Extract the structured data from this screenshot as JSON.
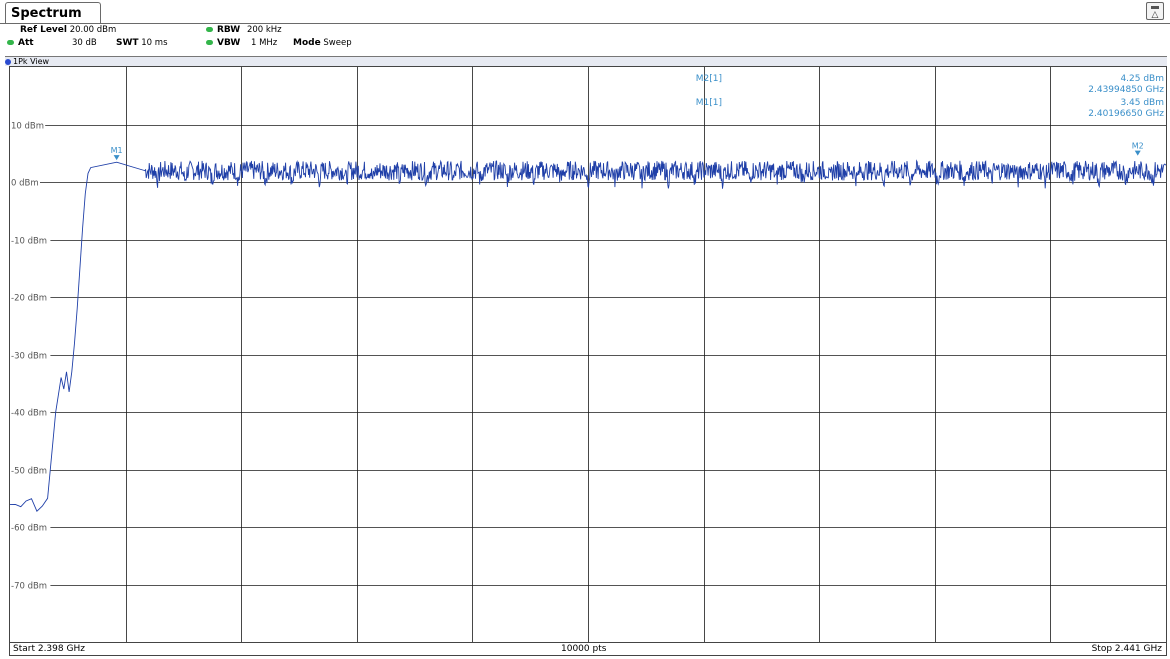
{
  "tab": {
    "label": "Spectrum"
  },
  "settings": {
    "ref_level_label": "Ref Level",
    "ref_level_value": "20.00 dBm",
    "att_label": "Att",
    "att_value": "30 dB",
    "swt_label": "SWT",
    "swt_value": "10 ms",
    "rbw_label": "RBW",
    "rbw_value": "200 kHz",
    "vbw_label": "VBW",
    "vbw_value": "1 MHz",
    "mode_label": "Mode",
    "mode_value": "Sweep"
  },
  "view_label": "1Pk View",
  "markers_table": {
    "m2_label": "M2[1]",
    "m2_level": "4.25 dBm",
    "m2_freq": "2.43994850 GHz",
    "m1_label": "M1[1]",
    "m1_level": "3.45 dBm",
    "m1_freq": "2.40196650 GHz"
  },
  "footer": {
    "start": "Start 2.398 GHz",
    "points": "10000 pts",
    "stop": "Stop 2.441 GHz"
  },
  "colors": {
    "trace": "#1f3fa8",
    "marker": "#3a8fc9",
    "grid": "#1a1a1a",
    "label": "#555555"
  },
  "chart_data": {
    "type": "line",
    "x_range_ghz": [
      2.398,
      2.441
    ],
    "y_range_dbm": [
      -80,
      20
    ],
    "y_ticks": [
      10,
      0,
      -10,
      -20,
      -30,
      -40,
      -50,
      -60,
      -70
    ],
    "y_tick_labels": [
      "10 dBm",
      "0 dBm",
      "-10 dBm",
      "-20 dBm",
      "-30 dBm",
      "-40 dBm",
      "-50 dBm",
      "-60 dBm",
      "-70 dBm"
    ],
    "x_divisions": 10,
    "grid": true,
    "series": [
      {
        "points": [
          [
            2.398,
            -56.5
          ],
          [
            2.3982,
            -55.8
          ],
          [
            2.3984,
            -56.8
          ],
          [
            2.3986,
            -56.0
          ],
          [
            2.3988,
            -55.5
          ],
          [
            2.399,
            -56.5
          ],
          [
            2.3992,
            -56.2
          ],
          [
            2.3994,
            -55.0
          ],
          [
            2.3995,
            -50.0
          ],
          [
            2.3996,
            -45.0
          ],
          [
            2.3997,
            -40.0
          ],
          [
            2.3998,
            -37.0
          ],
          [
            2.3999,
            -34.0
          ],
          [
            2.4,
            -36.0
          ],
          [
            2.4001,
            -33.0
          ],
          [
            2.4002,
            -36.5
          ],
          [
            2.4003,
            -33.0
          ],
          [
            2.4004,
            -28.0
          ],
          [
            2.4005,
            -22.0
          ],
          [
            2.4006,
            -15.0
          ],
          [
            2.4007,
            -8.0
          ],
          [
            2.4008,
            -2.0
          ],
          [
            2.4009,
            1.5
          ],
          [
            2.401,
            2.5
          ],
          [
            2.40197,
            3.45
          ],
          [
            2.403,
            2.0
          ]
        ],
        "plateau": {
          "from_ghz": 2.403,
          "to_ghz": 2.441,
          "center_dbm": 2.0,
          "ripple_dbm": 1.7,
          "dip_period_ghz": 0.001,
          "dip_dbm": -1.5
        }
      }
    ],
    "markers": [
      {
        "label": "M1",
        "x_ghz": 2.4019665,
        "y_dbm": 3.45
      },
      {
        "label": "M2",
        "x_ghz": 2.4399485,
        "y_dbm": 4.25
      }
    ]
  }
}
